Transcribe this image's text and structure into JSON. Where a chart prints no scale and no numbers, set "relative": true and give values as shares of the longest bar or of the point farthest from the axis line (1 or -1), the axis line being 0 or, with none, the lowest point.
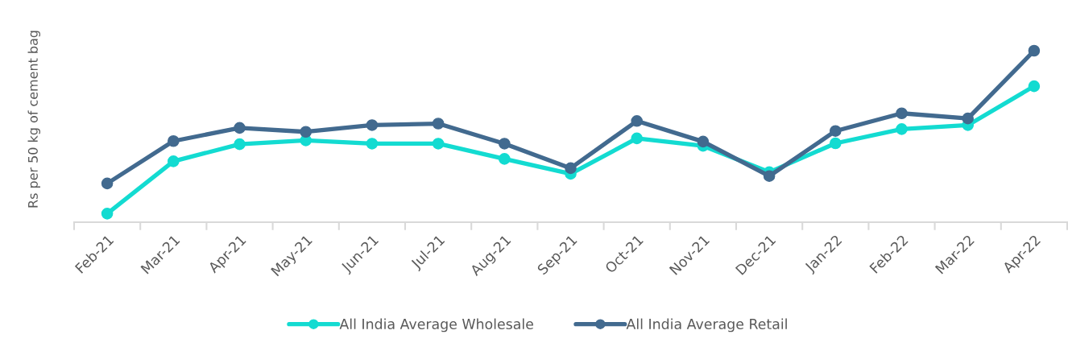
{
  "chart_data": {
    "type": "line",
    "relative": true,
    "ylabel": "Rs per 50 kg of cement bag",
    "categories": [
      "Feb-21",
      "Mar-21",
      "Apr-21",
      "May-21",
      "Jun-21",
      "Jul-21",
      "Aug-21",
      "Sep-21",
      "Oct-21",
      "Nov-21",
      "Dec-21",
      "Jan-22",
      "Feb-22",
      "Mar-22",
      "Apr-22"
    ],
    "series": [
      {
        "name": "All India Average Wholesale",
        "color": "#13dbd1",
        "values": [
          0.05,
          0.355,
          0.455,
          0.477,
          0.458,
          0.458,
          0.369,
          0.282,
          0.489,
          0.445,
          0.292,
          0.46,
          0.543,
          0.566,
          0.793
        ]
      },
      {
        "name": "All India Average Retail",
        "color": "#426a8f",
        "values": [
          0.226,
          0.473,
          0.55,
          0.527,
          0.566,
          0.575,
          0.458,
          0.315,
          0.59,
          0.47,
          0.269,
          0.532,
          0.635,
          0.605,
          1
        ]
      }
    ],
    "marker": "circle",
    "line_style": "solid",
    "grid": false,
    "legend": "bottom"
  }
}
